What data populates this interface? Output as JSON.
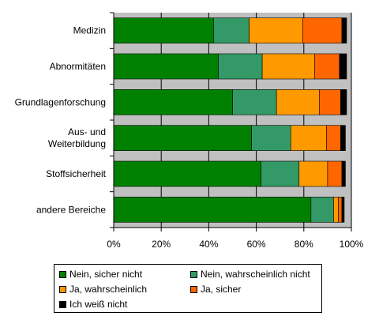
{
  "chart_data": {
    "type": "bar",
    "orientation": "horizontal",
    "stacked": true,
    "categories": [
      "Medizin",
      "Abnormitäten",
      "Grundlagenforschung",
      "Aus- und Weiterbildung",
      "Stoffsicherheit",
      "andere Bereiche"
    ],
    "category_lines": [
      [
        "Medizin"
      ],
      [
        "Abnormitäten"
      ],
      [
        "Grundlagenforschung"
      ],
      [
        "Aus- und",
        "Weiterbildung"
      ],
      [
        "Stoffsicherheit"
      ],
      [
        "andere Bereiche"
      ]
    ],
    "series": [
      {
        "name": "Nein, sicher nicht",
        "color": "#008000",
        "values": [
          42,
          44,
          50,
          58,
          62,
          83
        ]
      },
      {
        "name": "Nein, wahrscheinlich nicht",
        "color": "#339966",
        "values": [
          15,
          18.5,
          18.5,
          16.5,
          16,
          9.5
        ]
      },
      {
        "name": "Ja, wahrscheinlich",
        "color": "#FF9900",
        "values": [
          22.5,
          22,
          18,
          15,
          12,
          2
        ]
      },
      {
        "name": "Ja, sicher",
        "color": "#FF6600",
        "values": [
          16.5,
          10.5,
          9,
          6,
          6,
          1.5
        ]
      },
      {
        "name": "Ich weiß nicht",
        "color": "#000000",
        "values": [
          2,
          3,
          2.5,
          2,
          1.5,
          1
        ]
      }
    ],
    "x_ticks": [
      "0%",
      "20%",
      "40%",
      "60%",
      "80%",
      "100%"
    ],
    "xlim": [
      0,
      100
    ],
    "grid": true,
    "plot_background": "#C0C0C0",
    "legend_position": "bottom",
    "title": "",
    "xlabel": "",
    "ylabel": ""
  }
}
